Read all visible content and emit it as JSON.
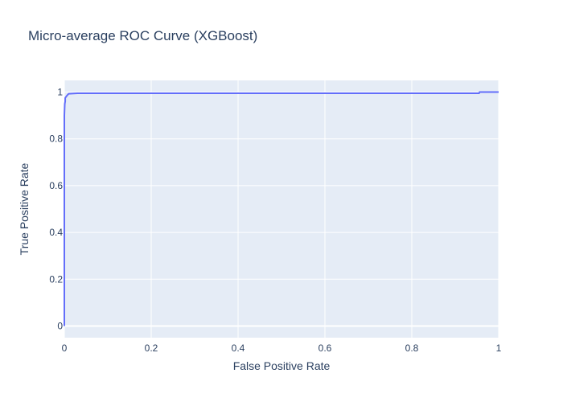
{
  "chart_data": {
    "type": "line",
    "title": "Micro-average ROC Curve (XGBoost)",
    "xlabel": "False Positive Rate",
    "ylabel": "True Positive Rate",
    "xlim": [
      0,
      1
    ],
    "ylim": [
      -0.05,
      1.05
    ],
    "x_ticks": [
      0,
      0.2,
      0.4,
      0.6,
      0.8,
      1
    ],
    "x_tick_labels": [
      "0",
      "0.2",
      "0.4",
      "0.6",
      "0.8",
      "1"
    ],
    "y_ticks": [
      0,
      0.2,
      0.4,
      0.6,
      0.8,
      1
    ],
    "y_tick_labels": [
      "0",
      "0.2",
      "0.4",
      "0.6",
      "0.8",
      "1"
    ],
    "grid": true,
    "colors": {
      "plot_background": "#e5ecf6",
      "grid": "#ffffff",
      "line": "#636efa",
      "text": "#2a3f5f"
    },
    "series": [
      {
        "x": [
          0,
          0,
          0.001,
          0.002,
          0.002,
          0.004,
          0.006,
          0.01,
          0.03,
          0.955,
          0.956,
          1
        ],
        "y": [
          0,
          0.9,
          0.95,
          0.96,
          0.975,
          0.98,
          0.985,
          0.993,
          0.995,
          0.995,
          1.0,
          1.0
        ]
      }
    ]
  }
}
